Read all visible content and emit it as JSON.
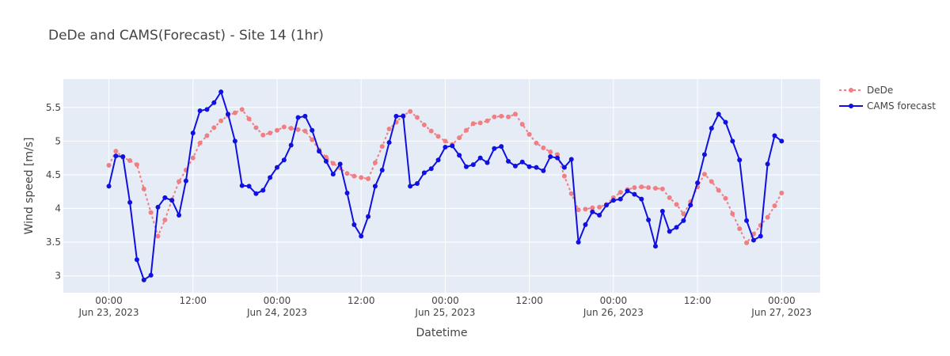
{
  "chart_data": {
    "type": "line",
    "title": "DeDe and CAMS(Forecast) - Site 14 (1hr)",
    "xlabel": "Datetime",
    "ylabel": "Wind speed [m/s]",
    "x_start": "2023-06-23 00:00",
    "x_step_hours": 1,
    "xlim": [
      "2023-06-22 17:30",
      "2023-06-27 05:30"
    ],
    "ylim": [
      2.75,
      5.92
    ],
    "y_ticks": [
      3,
      3.5,
      4,
      4.5,
      5,
      5.5
    ],
    "y_tick_labels": [
      "3",
      "3.5",
      "4",
      "4.5",
      "5",
      "5.5"
    ],
    "x_ticks": [
      {
        "at": "2023-06-23 00:00",
        "line1": "00:00",
        "line2": "Jun 23, 2023"
      },
      {
        "at": "2023-06-23 12:00",
        "line1": "12:00",
        "line2": ""
      },
      {
        "at": "2023-06-24 00:00",
        "line1": "00:00",
        "line2": "Jun 24, 2023"
      },
      {
        "at": "2023-06-24 12:00",
        "line1": "12:00",
        "line2": ""
      },
      {
        "at": "2023-06-25 00:00",
        "line1": "00:00",
        "line2": "Jun 25, 2023"
      },
      {
        "at": "2023-06-25 12:00",
        "line1": "12:00",
        "line2": ""
      },
      {
        "at": "2023-06-26 00:00",
        "line1": "00:00",
        "line2": "Jun 26, 2023"
      },
      {
        "at": "2023-06-26 12:00",
        "line1": "12:00",
        "line2": ""
      },
      {
        "at": "2023-06-27 00:00",
        "line1": "00:00",
        "line2": "Jun 27, 2023"
      }
    ],
    "grid": true,
    "legend_position": "top-right",
    "plot_background": "#E5ECF6",
    "series": [
      {
        "name": "DeDe",
        "color": "#F07F84",
        "dash": "dot",
        "values": [
          4.64,
          4.85,
          4.76,
          4.71,
          4.65,
          4.29,
          3.94,
          3.59,
          3.83,
          4.13,
          4.4,
          4.57,
          4.75,
          4.97,
          5.08,
          5.2,
          5.3,
          5.38,
          5.42,
          5.47,
          5.33,
          5.2,
          5.09,
          5.12,
          5.16,
          5.21,
          5.19,
          5.17,
          5.15,
          5.02,
          4.87,
          4.76,
          4.67,
          4.6,
          4.52,
          4.48,
          4.46,
          4.44,
          4.68,
          4.92,
          5.18,
          5.28,
          5.38,
          5.44,
          5.35,
          5.24,
          5.15,
          5.07,
          5.0,
          4.95,
          5.05,
          5.16,
          5.26,
          5.27,
          5.3,
          5.36,
          5.37,
          5.36,
          5.4,
          5.25,
          5.1,
          4.97,
          4.9,
          4.84,
          4.8,
          4.48,
          4.22,
          3.98,
          3.99,
          4.01,
          4.02,
          4.06,
          4.16,
          4.24,
          4.28,
          4.31,
          4.32,
          4.31,
          4.3,
          4.29,
          4.16,
          4.06,
          3.92,
          4.1,
          4.32,
          4.51,
          4.4,
          4.27,
          4.15,
          3.92,
          3.7,
          3.49,
          3.62,
          3.75,
          3.87,
          4.04,
          4.23
        ]
      },
      {
        "name": "CAMS forecast",
        "color": "#1010E0",
        "dash": "solid",
        "values": [
          4.33,
          4.78,
          4.77,
          4.09,
          3.24,
          2.94,
          3.01,
          4.02,
          4.16,
          4.12,
          3.9,
          4.41,
          5.12,
          5.45,
          5.47,
          5.57,
          5.73,
          5.4,
          5.0,
          4.34,
          4.33,
          4.22,
          4.27,
          4.46,
          4.61,
          4.72,
          4.94,
          5.35,
          5.37,
          5.16,
          4.85,
          4.7,
          4.51,
          4.66,
          4.23,
          3.76,
          3.59,
          3.88,
          4.33,
          4.57,
          4.98,
          5.37,
          5.37,
          4.33,
          4.37,
          4.53,
          4.59,
          4.72,
          4.91,
          4.93,
          4.79,
          4.62,
          4.65,
          4.75,
          4.68,
          4.89,
          4.92,
          4.7,
          4.63,
          4.69,
          4.62,
          4.61,
          4.56,
          4.77,
          4.75,
          4.61,
          4.73,
          3.5,
          3.76,
          3.95,
          3.9,
          4.05,
          4.12,
          4.14,
          4.26,
          4.21,
          4.14,
          3.83,
          3.44,
          3.96,
          3.66,
          3.72,
          3.82,
          4.05,
          4.38,
          4.8,
          5.19,
          5.4,
          5.28,
          5.0,
          4.72,
          3.82,
          3.53,
          3.59,
          4.66,
          5.08,
          5.0
        ]
      }
    ]
  }
}
